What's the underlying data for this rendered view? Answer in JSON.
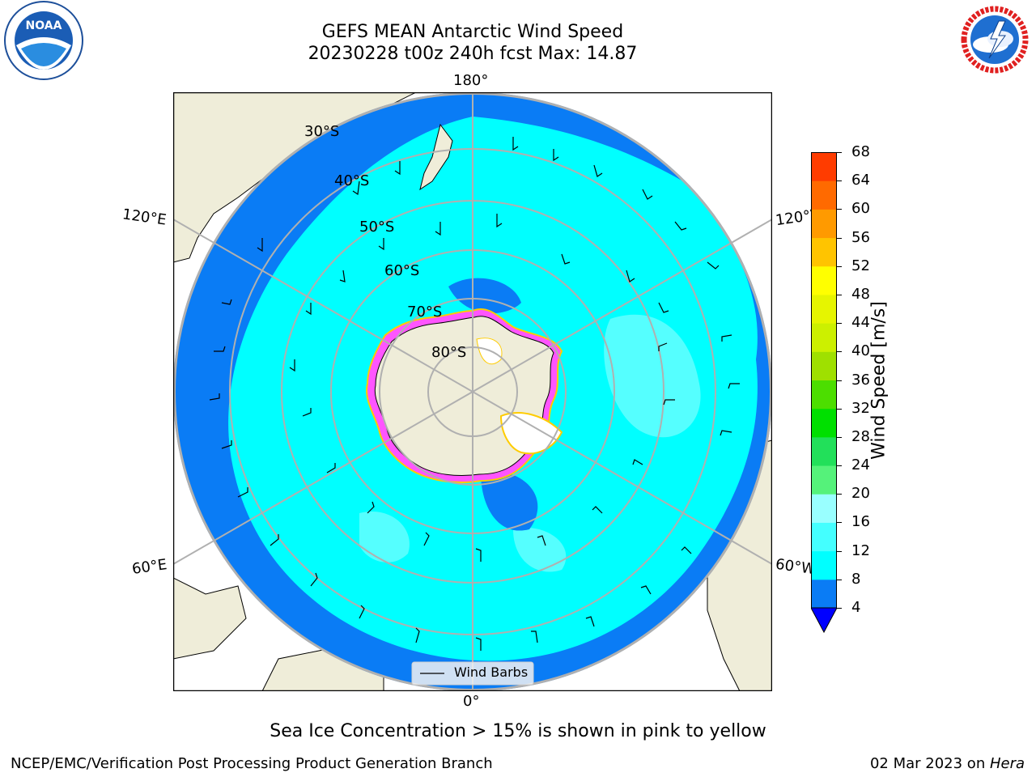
{
  "title_line1": "GEFS MEAN Antarctic Wind Speed",
  "title_line2": "20230228 t00z 240h fcst   Max: 14.87",
  "longitude_labels": {
    "top": "180°",
    "bottom": "0°",
    "left_top": "120°E",
    "left_bottom": "60°E",
    "right_top": "120°W",
    "right_bottom": "60°W"
  },
  "latitude_labels": [
    "30°S",
    "40°S",
    "50°S",
    "60°S",
    "70°S",
    "80°S"
  ],
  "legend": {
    "wind_barbs": "Wind Barbs"
  },
  "colorbar": {
    "label": "Wind Speed [m/s]",
    "ticks": [
      "4",
      "8",
      "12",
      "16",
      "20",
      "24",
      "28",
      "32",
      "36",
      "40",
      "44",
      "48",
      "52",
      "56",
      "60",
      "64",
      "68"
    ],
    "colors": [
      "#0a7cf5",
      "#00ffff",
      "#44ffff",
      "#99ffff",
      "#55f27a",
      "#22e05a",
      "#00e000",
      "#4cde00",
      "#9fe000",
      "#ccf000",
      "#e6f500",
      "#ffff00",
      "#ffc400",
      "#ff9a00",
      "#ff6a00",
      "#ff3c00",
      "#ff1000"
    ],
    "extend_color": "#0000ff"
  },
  "caption": "Sea Ice Concentration > 15% is shown in pink to yellow",
  "footer_left": "NCEP/EMC/Verification Post Processing Product Generation Branch",
  "footer_right_date": "02 Mar 2023 on ",
  "footer_right_host": "Hera",
  "logos": {
    "noaa": "NOAA",
    "nws": "NATIONAL WEATHER SERVICE"
  },
  "colors": {
    "land": "#efedd9",
    "ocean_dark": "#0a7cf5",
    "ocean_mid": "#00ffff",
    "ocean_light": "#55ffff",
    "sea_ice": "#ff55ff"
  }
}
